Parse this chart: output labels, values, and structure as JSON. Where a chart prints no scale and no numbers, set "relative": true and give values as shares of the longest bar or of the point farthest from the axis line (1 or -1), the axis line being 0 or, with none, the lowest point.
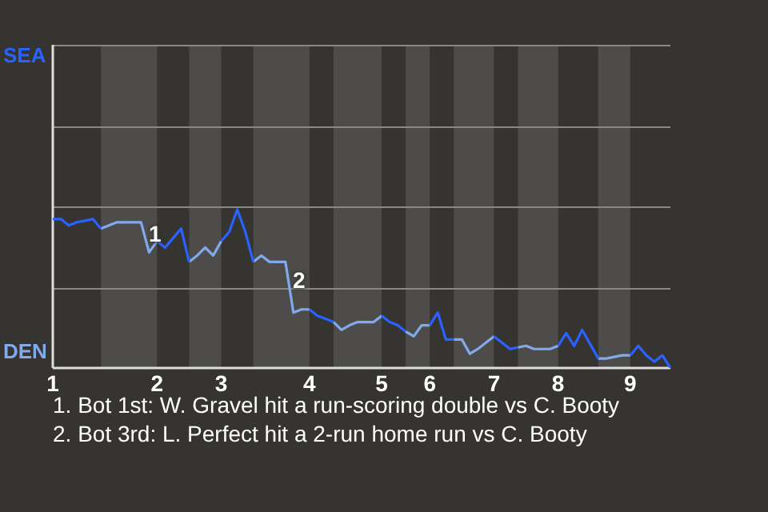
{
  "chart_data": {
    "type": "line",
    "relative": true,
    "categories": [
      "1",
      null,
      null,
      null,
      null,
      null,
      null,
      null,
      null,
      null,
      null,
      null,
      null,
      "2",
      null,
      null,
      null,
      null,
      null,
      null,
      null,
      "3",
      null,
      null,
      null,
      null,
      null,
      null,
      null,
      null,
      null,
      null,
      "4",
      null,
      null,
      null,
      null,
      null,
      null,
      null,
      null,
      "5",
      null,
      null,
      null,
      null,
      null,
      "6",
      null,
      null,
      null,
      null,
      null,
      null,
      null,
      "7",
      null,
      null,
      null,
      null,
      null,
      null,
      null,
      "8",
      null,
      null,
      null,
      null,
      null,
      null,
      null,
      null,
      "9",
      null,
      null,
      null,
      null,
      null
    ],
    "series": [
      {
        "color": "#2962ff",
        "values": [
          0.94,
          0.94,
          0.9,
          0.92,
          0.93,
          0.94,
          0.88,
          null,
          null,
          null,
          null,
          null,
          null,
          0.8,
          0.76,
          0.82,
          0.88,
          0.67,
          null,
          null,
          null,
          0.8,
          0.86,
          1,
          0.86,
          0.67,
          null,
          null,
          null,
          null,
          null,
          null,
          0.37,
          0.33,
          0.31,
          0.29,
          null,
          null,
          null,
          null,
          null,
          0.33,
          0.29,
          0.27,
          0.23,
          null,
          null,
          0.27,
          0.35,
          0.18,
          0.18,
          null,
          null,
          null,
          null,
          0.2,
          0.16,
          0.12,
          0.13,
          null,
          null,
          null,
          null,
          0.14,
          0.22,
          0.14,
          0.24,
          0.15,
          0.06,
          null,
          null,
          null,
          0.08,
          0.14,
          0.08,
          0.04,
          0.08,
          0
        ]
      },
      {
        "color": "#82aaeb",
        "values": [
          null,
          null,
          null,
          null,
          null,
          null,
          0.88,
          0.9,
          0.92,
          0.92,
          0.92,
          0.92,
          0.73,
          0.8,
          null,
          null,
          null,
          0.67,
          0.71,
          0.76,
          0.71,
          0.8,
          null,
          null,
          null,
          0.67,
          0.71,
          0.67,
          0.67,
          0.67,
          0.35,
          0.37,
          0.37,
          null,
          null,
          0.29,
          0.24,
          0.27,
          0.29,
          0.29,
          0.29,
          0.33,
          null,
          null,
          0.23,
          0.2,
          0.27,
          0.27,
          null,
          null,
          0.18,
          0.18,
          0.09,
          0.12,
          0.16,
          0.2,
          null,
          null,
          0.13,
          0.14,
          0.12,
          0.12,
          0.12,
          0.14,
          null,
          null,
          null,
          null,
          0.06,
          0.06,
          0.07,
          0.08,
          0.08,
          null,
          null,
          null,
          null,
          null
        ]
      }
    ],
    "ref_lines": [
      {
        "axis": "y",
        "value": 0.51,
        "color": "#8a8886"
      },
      {
        "axis": "y",
        "value": 1.02,
        "color": "#8a8886"
      },
      {
        "axis": "y",
        "value": 1.53,
        "color": "#8a8886"
      },
      {
        "axis": "y",
        "value": 2.04,
        "color": "#8a8886"
      }
    ],
    "marker": "none",
    "line_style": "solid",
    "annotations": [
      "SEA",
      "DEN",
      "1",
      "2",
      "1. Bot 1st: W. Gravel hit a run-scoring double vs C. Booty",
      "2. Bot 3rd: L. Perfect hit a 2-run home run vs C. Booty"
    ]
  }
}
